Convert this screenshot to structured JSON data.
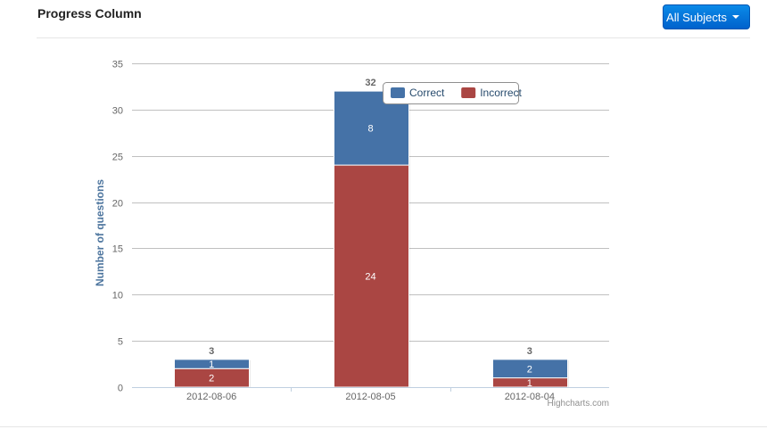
{
  "header": {
    "title": "Progress Column",
    "subject_button_label": "All Subjects",
    "subject_button_icon": "caret-down-icon"
  },
  "chart_data": {
    "type": "bar",
    "stacked": true,
    "categories": [
      "2012-08-06",
      "2012-08-05",
      "2012-08-04"
    ],
    "series": [
      {
        "name": "Correct",
        "values": [
          1,
          8,
          2
        ],
        "color": "#4572a7"
      },
      {
        "name": "Incorrect",
        "values": [
          2,
          24,
          1
        ],
        "color": "#aa4643"
      }
    ],
    "totals": [
      3,
      32,
      3
    ],
    "title": "",
    "xlabel": "",
    "ylabel": "Number of questions",
    "ylim": [
      0,
      35
    ],
    "yticks": [
      0,
      5,
      10,
      15,
      20,
      25,
      30,
      35
    ],
    "grid": true,
    "legend_position": "top-right",
    "credits": "Highcharts.com"
  }
}
